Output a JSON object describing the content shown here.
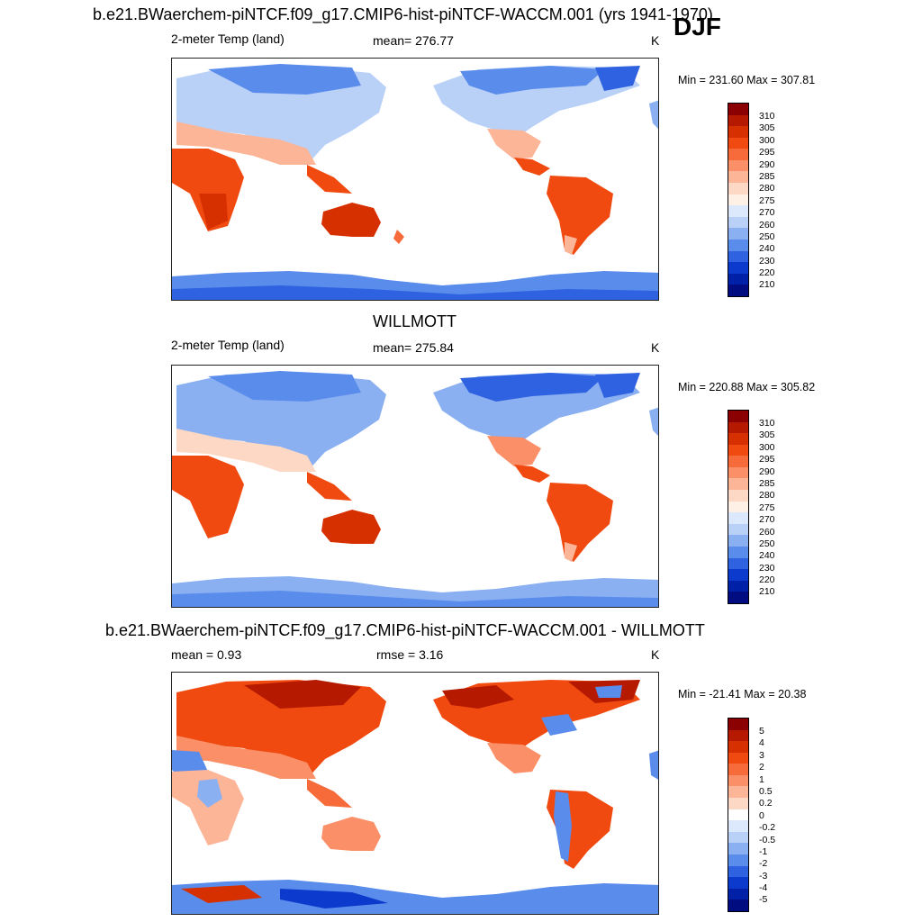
{
  "panels": [
    {
      "title": "b.e21.BWaerchem-piNTCF.f09_g17.CMIP6-hist-piNTCF-WACCM.001 (yrs 1941-1970)",
      "season": "DJF",
      "left_label": "2-meter Temp (land)",
      "center_label": "mean= 276.77",
      "units": "K",
      "minmax": "Min = 231.60 Max = 307.81",
      "colorbar_labels": [
        "310",
        "305",
        "300",
        "295",
        "290",
        "285",
        "280",
        "275",
        "270",
        "260",
        "250",
        "240",
        "230",
        "220",
        "210"
      ]
    },
    {
      "title": "WILLMOTT",
      "left_label": "2-meter Temp (land)",
      "center_label": "mean= 275.84",
      "units": "K",
      "minmax": "Min = 220.88 Max = 305.82",
      "colorbar_labels": [
        "310",
        "305",
        "300",
        "295",
        "290",
        "285",
        "280",
        "275",
        "270",
        "260",
        "250",
        "240",
        "230",
        "220",
        "210"
      ]
    },
    {
      "title": "b.e21.BWaerchem-piNTCF.f09_g17.CMIP6-hist-piNTCF-WACCM.001 - WILLMOTT",
      "left_label": "mean =   0.93",
      "center_label": "rmse =   3.16",
      "units": "K",
      "minmax": "Min = -21.41 Max =  20.38",
      "colorbar_labels": [
        "5",
        "4",
        "3",
        "2",
        "1",
        "0.5",
        "0.2",
        "0",
        "-0.2",
        "-0.5",
        "-1",
        "-2",
        "-3",
        "-4",
        "-5"
      ]
    }
  ],
  "colors": {
    "abs_scale": [
      "#8b0000",
      "#b51a00",
      "#d73000",
      "#f04a10",
      "#f76a3a",
      "#fb9068",
      "#fdb598",
      "#fdd8c4",
      "#fff0e6",
      "#dce8fb",
      "#b9d0f7",
      "#8ab0f2",
      "#5a8cec",
      "#2e62e0",
      "#0c3acc",
      "#0020a8",
      "#000c80"
    ],
    "diff_scale": [
      "#8b0000",
      "#b51a00",
      "#d73000",
      "#f04a10",
      "#f76a3a",
      "#fb9068",
      "#fdb598",
      "#fdd8c4",
      "#ffffff",
      "#dce8fb",
      "#b9d0f7",
      "#8ab0f2",
      "#5a8cec",
      "#2e62e0",
      "#0c3acc",
      "#0020a8",
      "#000c80"
    ]
  }
}
